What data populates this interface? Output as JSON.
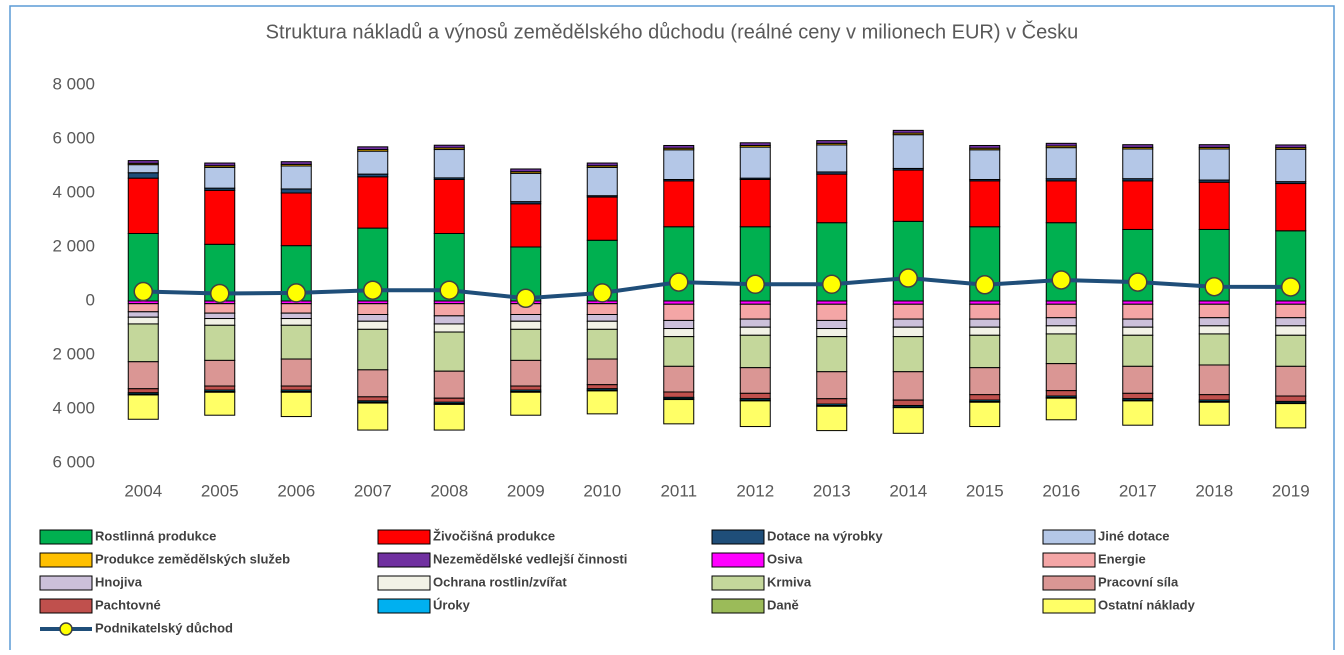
{
  "chart_data": {
    "type": "stacked-bar-line",
    "title": "Struktura nákladů a výnosů zemědělského důchodu (reálné ceny v milionech EUR) v Česku",
    "categories": [
      "2004",
      "2005",
      "2006",
      "2007",
      "2008",
      "2009",
      "2010",
      "2011",
      "2012",
      "2013",
      "2014",
      "2015",
      "2016",
      "2017",
      "2018",
      "2019"
    ],
    "ylim": [
      -6000,
      8000
    ],
    "yticks": [
      {
        "value": 8000,
        "label": "8 000"
      },
      {
        "value": 6000,
        "label": "6 000"
      },
      {
        "value": 4000,
        "label": "4 000"
      },
      {
        "value": 2000,
        "label": "2 000"
      },
      0,
      {
        "value": -2000,
        "label": "2 000"
      },
      {
        "value": -4000,
        "label": "4 000"
      },
      {
        "value": -6000,
        "label": "6 000"
      }
    ],
    "grid": false,
    "series": [
      {
        "name": "Rostlinná produkce",
        "color": "#00b050",
        "values": [
          2500,
          2100,
          2050,
          2700,
          2500,
          2000,
          2250,
          2750,
          2750,
          2900,
          2950,
          2750,
          2900,
          2650,
          2650,
          2600
        ]
      },
      {
        "name": "Živočišná produkce",
        "color": "#ff0000",
        "values": [
          2050,
          2000,
          1950,
          1900,
          2000,
          1600,
          1600,
          1700,
          1750,
          1800,
          1900,
          1700,
          1550,
          1800,
          1750,
          1750
        ]
      },
      {
        "name": "Dotace na výrobky",
        "color": "#1f4e79",
        "values": [
          200,
          80,
          150,
          100,
          60,
          80,
          50,
          50,
          50,
          80,
          60,
          50,
          80,
          80,
          80,
          70
        ]
      },
      {
        "name": "Jiné dotace",
        "color": "#b4c7e7",
        "values": [
          300,
          770,
          850,
          850,
          1050,
          1050,
          1050,
          1100,
          1150,
          1000,
          1250,
          1100,
          1150,
          1100,
          1150,
          1200
        ]
      },
      {
        "name": "Produkce zemědělských služeb",
        "color": "#ffc000",
        "values": [
          50,
          60,
          60,
          60,
          60,
          60,
          60,
          60,
          60,
          60,
          60,
          60,
          60,
          60,
          60,
          60
        ]
      },
      {
        "name": "Nezemědělské vedlejší činnosti",
        "color": "#7030a0",
        "values": [
          100,
          100,
          100,
          100,
          100,
          100,
          100,
          100,
          100,
          100,
          100,
          100,
          100,
          100,
          100,
          100
        ]
      },
      {
        "name": "Osiva",
        "color": "#ff00ff",
        "values": [
          -100,
          -100,
          -100,
          -100,
          -100,
          -100,
          -100,
          -120,
          -120,
          -120,
          -120,
          -120,
          -120,
          -120,
          -120,
          -120
        ]
      },
      {
        "name": "Energie",
        "color": "#f4a6a6",
        "values": [
          -300,
          -350,
          -350,
          -400,
          -450,
          -400,
          -400,
          -600,
          -550,
          -600,
          -550,
          -550,
          -500,
          -550,
          -500,
          -500
        ]
      },
      {
        "name": "Hnojiva",
        "color": "#ccc0da",
        "values": [
          -200,
          -200,
          -200,
          -250,
          -300,
          -250,
          -250,
          -300,
          -300,
          -300,
          -300,
          -300,
          -300,
          -300,
          -300,
          -300
        ]
      },
      {
        "name": "Ochrana rostlin/zvířat",
        "color": "#f2f2e6",
        "values": [
          -250,
          -250,
          -250,
          -300,
          -300,
          -300,
          -300,
          -300,
          -300,
          -300,
          -350,
          -300,
          -300,
          -300,
          -300,
          -350
        ]
      },
      {
        "name": "Krmiva",
        "color": "#c4d79b",
        "values": [
          -1400,
          -1300,
          -1250,
          -1500,
          -1450,
          -1150,
          -1100,
          -1100,
          -1200,
          -1300,
          -1300,
          -1200,
          -1100,
          -1150,
          -1150,
          -1150
        ]
      },
      {
        "name": "Pracovní síla",
        "color": "#da9694",
        "values": [
          -1000,
          -950,
          -1000,
          -1000,
          -1000,
          -950,
          -950,
          -950,
          -950,
          -1000,
          -1050,
          -1000,
          -1000,
          -1000,
          -1100,
          -1100
        ]
      },
      {
        "name": "Pachtovné",
        "color": "#c0504d",
        "values": [
          -150,
          -150,
          -150,
          -150,
          -150,
          -150,
          -150,
          -200,
          -200,
          -200,
          -200,
          -200,
          -200,
          -200,
          -200,
          -200
        ]
      },
      {
        "name": "Úroky",
        "color": "#00b0f0",
        "values": [
          -50,
          -50,
          -50,
          -50,
          -50,
          -50,
          -50,
          -50,
          -50,
          -50,
          -50,
          -50,
          -50,
          -50,
          -50,
          -50
        ]
      },
      {
        "name": "Daně",
        "color": "#9bbb59",
        "values": [
          -30,
          -30,
          -30,
          -30,
          -30,
          -30,
          -30,
          -30,
          -30,
          -30,
          -30,
          -30,
          -30,
          -30,
          -30,
          -30
        ]
      },
      {
        "name": "Ostatní náklady",
        "color": "#ffff66",
        "values": [
          -900,
          -850,
          -900,
          -1000,
          -950,
          -850,
          -850,
          -900,
          -950,
          -900,
          -950,
          -900,
          -800,
          -900,
          -850,
          -900
        ]
      },
      {
        "name": "Podnikatelský důchod",
        "type": "line",
        "color": "#1f4e79",
        "marker_color": "#ffff00",
        "values": [
          350,
          280,
          300,
          400,
          400,
          100,
          300,
          700,
          620,
          620,
          850,
          600,
          780,
          700,
          530,
          520
        ]
      }
    ]
  }
}
